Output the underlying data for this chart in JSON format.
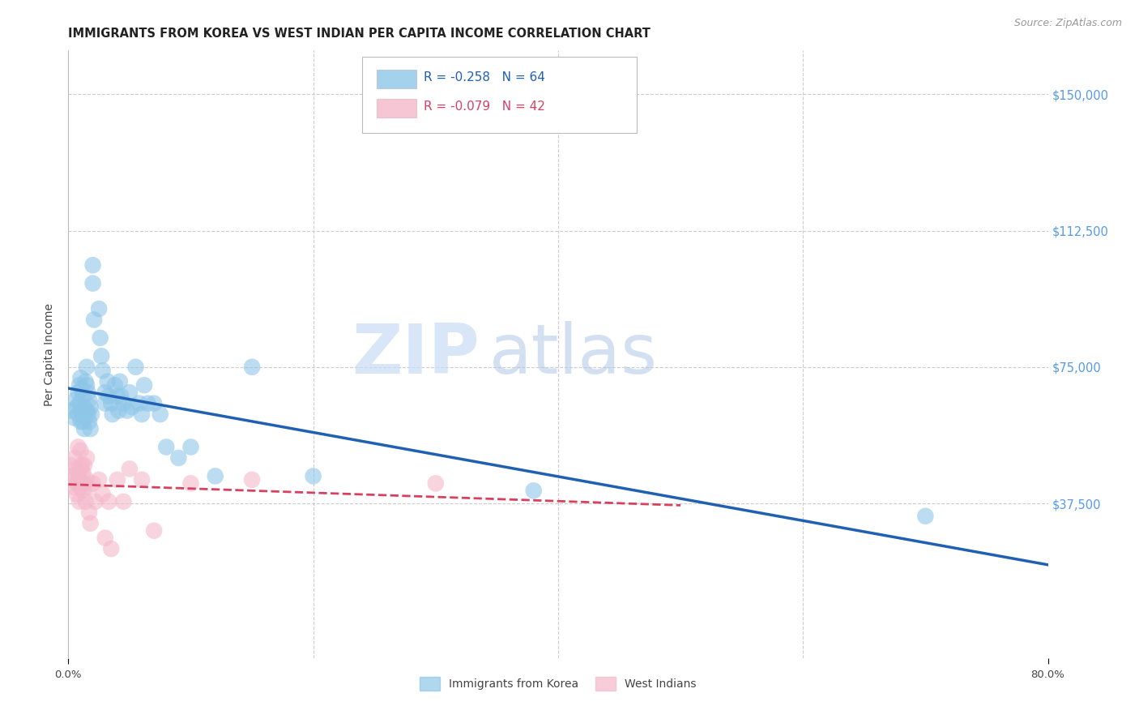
{
  "title": "IMMIGRANTS FROM KOREA VS WEST INDIAN PER CAPITA INCOME CORRELATION CHART",
  "source": "Source: ZipAtlas.com",
  "ylabel": "Per Capita Income",
  "yticks": [
    0,
    37500,
    75000,
    112500,
    150000
  ],
  "ytick_labels": [
    "",
    "$37,500",
    "$75,000",
    "$112,500",
    "$150,000"
  ],
  "xlim": [
    0.0,
    0.8
  ],
  "ylim": [
    -5000,
    162000
  ],
  "background_color": "#ffffff",
  "grid_color": "#cccccc",
  "watermark_zip": "ZIP",
  "watermark_atlas": "atlas",
  "legend1_label": "R = -0.258   N = 64",
  "legend2_label": "R = -0.079   N = 42",
  "legend_series1": "Immigrants from Korea",
  "legend_series2": "West Indians",
  "blue_color": "#8ec6e8",
  "pink_color": "#f4b8cb",
  "blue_line_color": "#2060b0",
  "pink_line_color": "#d84060",
  "korea_x": [
    0.003,
    0.005,
    0.006,
    0.007,
    0.008,
    0.008,
    0.009,
    0.009,
    0.01,
    0.01,
    0.011,
    0.011,
    0.012,
    0.012,
    0.013,
    0.013,
    0.014,
    0.015,
    0.015,
    0.015,
    0.016,
    0.016,
    0.017,
    0.017,
    0.018,
    0.018,
    0.019,
    0.02,
    0.02,
    0.021,
    0.025,
    0.026,
    0.027,
    0.028,
    0.03,
    0.03,
    0.032,
    0.033,
    0.035,
    0.036,
    0.038,
    0.04,
    0.041,
    0.042,
    0.043,
    0.045,
    0.048,
    0.05,
    0.052,
    0.055,
    0.058,
    0.06,
    0.062,
    0.065,
    0.07,
    0.075,
    0.08,
    0.09,
    0.1,
    0.12,
    0.15,
    0.2,
    0.38,
    0.7
  ],
  "korea_y": [
    63000,
    61000,
    66000,
    64000,
    68000,
    62000,
    70000,
    65000,
    72000,
    60000,
    69000,
    63000,
    67000,
    60000,
    64000,
    58000,
    71000,
    75000,
    70000,
    63000,
    68000,
    62000,
    66000,
    60000,
    64000,
    58000,
    62000,
    103000,
    98000,
    88000,
    91000,
    83000,
    78000,
    74000,
    68000,
    65000,
    71000,
    67000,
    65000,
    62000,
    70000,
    67000,
    63000,
    71000,
    67000,
    65000,
    63000,
    68000,
    64000,
    75000,
    65000,
    62000,
    70000,
    65000,
    65000,
    62000,
    53000,
    50000,
    53000,
    45000,
    75000,
    45000,
    41000,
    34000
  ],
  "westindian_x": [
    0.002,
    0.003,
    0.004,
    0.005,
    0.005,
    0.006,
    0.007,
    0.007,
    0.008,
    0.008,
    0.009,
    0.009,
    0.01,
    0.01,
    0.01,
    0.011,
    0.011,
    0.012,
    0.012,
    0.013,
    0.013,
    0.014,
    0.015,
    0.015,
    0.016,
    0.017,
    0.018,
    0.02,
    0.022,
    0.025,
    0.028,
    0.03,
    0.033,
    0.035,
    0.04,
    0.045,
    0.05,
    0.06,
    0.07,
    0.1,
    0.15,
    0.3
  ],
  "westindian_y": [
    48000,
    45000,
    42000,
    50000,
    44000,
    47000,
    43000,
    40000,
    53000,
    46000,
    44000,
    38000,
    52000,
    47000,
    42000,
    48000,
    43000,
    46000,
    41000,
    48000,
    43000,
    38000,
    50000,
    44000,
    42000,
    35000,
    32000,
    43000,
    38000,
    44000,
    40000,
    28000,
    38000,
    25000,
    44000,
    38000,
    47000,
    44000,
    30000,
    43000,
    44000,
    43000
  ],
  "title_fontsize": 10.5,
  "source_fontsize": 9,
  "label_fontsize": 10,
  "tick_fontsize": 9.5
}
